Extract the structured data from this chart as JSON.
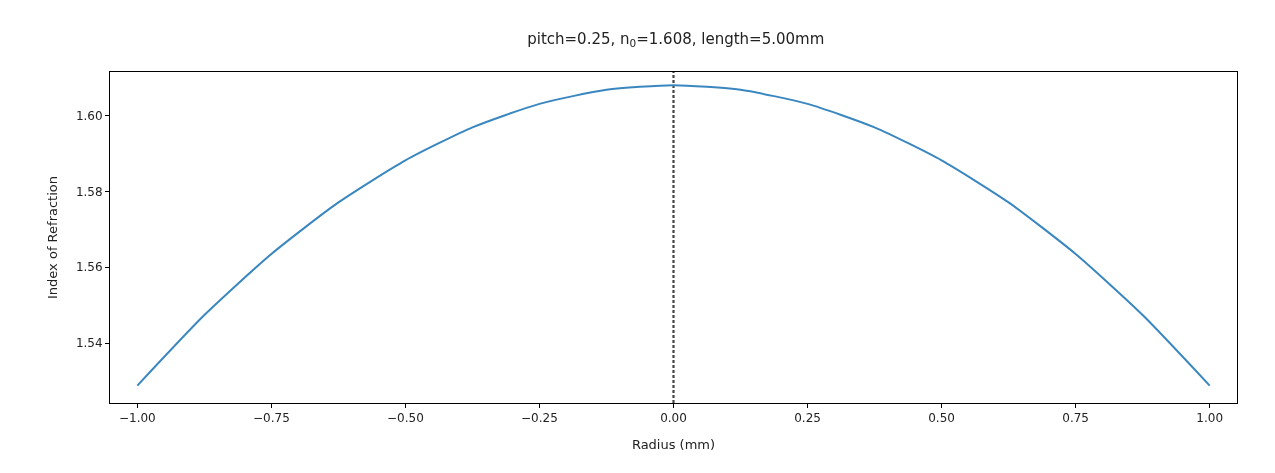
{
  "chart_data": {
    "type": "line",
    "title": "pitch=0.25, n$_{0}$=1.608, length=5.00mm",
    "xlabel": "Radius (mm)",
    "ylabel": "Index of Refraction",
    "x": [
      -1.0,
      -0.875,
      -0.75,
      -0.625,
      -0.5,
      -0.375,
      -0.25,
      -0.125,
      0.0,
      0.125,
      0.25,
      0.375,
      0.5,
      0.625,
      0.75,
      0.875,
      1.0
    ],
    "series": [
      {
        "color": "#3a87c0",
        "line_style": "solid",
        "values": [
          1.5288,
          1.5474,
          1.5635,
          1.5771,
          1.5882,
          1.5969,
          1.6031,
          1.6068,
          1.608,
          1.6068,
          1.6031,
          1.5969,
          1.5882,
          1.5771,
          1.5635,
          1.5474,
          1.5288
        ]
      }
    ],
    "ref_lines": [
      {
        "axis": "x",
        "value": 0.0,
        "color": "#444444",
        "line_style": "dotted"
      }
    ],
    "xlim": [
      -1.051,
      1.051
    ],
    "ylim": [
      1.5242,
      1.6115
    ],
    "xticks": [
      {
        "value": -1.0,
        "label": "−1.00"
      },
      {
        "value": -0.75,
        "label": "−0.75"
      },
      {
        "value": -0.5,
        "label": "−0.50"
      },
      {
        "value": -0.25,
        "label": "−0.25"
      },
      {
        "value": 0.0,
        "label": "0.00"
      },
      {
        "value": 0.25,
        "label": "0.25"
      },
      {
        "value": 0.5,
        "label": "0.50"
      },
      {
        "value": 0.75,
        "label": "0.75"
      },
      {
        "value": 1.0,
        "label": "1.00"
      }
    ],
    "yticks": [
      {
        "value": 1.54,
        "label": "1.54"
      },
      {
        "value": 1.56,
        "label": "1.56"
      },
      {
        "value": 1.58,
        "label": "1.58"
      },
      {
        "value": 1.6,
        "label": "1.60"
      }
    ],
    "grid": false,
    "marker": "none"
  }
}
